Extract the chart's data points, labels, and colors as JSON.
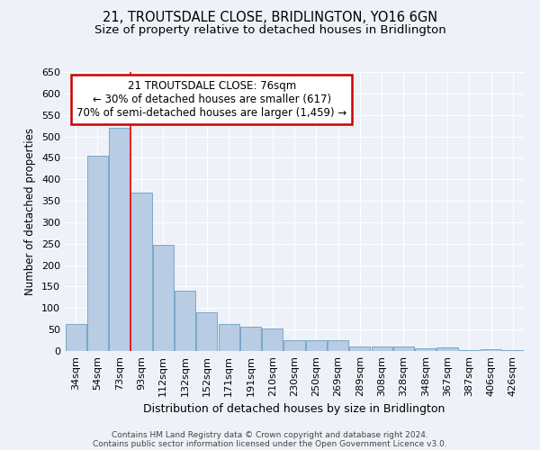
{
  "title1": "21, TROUTSDALE CLOSE, BRIDLINGTON, YO16 6GN",
  "title2": "Size of property relative to detached houses in Bridlington",
  "xlabel": "Distribution of detached houses by size in Bridlington",
  "ylabel": "Number of detached properties",
  "categories": [
    "34sqm",
    "54sqm",
    "73sqm",
    "93sqm",
    "112sqm",
    "132sqm",
    "152sqm",
    "171sqm",
    "191sqm",
    "210sqm",
    "230sqm",
    "250sqm",
    "269sqm",
    "289sqm",
    "308sqm",
    "328sqm",
    "348sqm",
    "367sqm",
    "387sqm",
    "406sqm",
    "426sqm"
  ],
  "values": [
    62,
    455,
    521,
    368,
    248,
    140,
    91,
    62,
    56,
    53,
    26,
    26,
    26,
    11,
    11,
    11,
    6,
    8,
    3,
    4,
    3
  ],
  "bar_color": "#b8cce4",
  "bar_edge_color": "#7ba7c7",
  "red_line_index": 2,
  "annotation_title": "21 TROUTSDALE CLOSE: 76sqm",
  "annotation_line1": "← 30% of detached houses are smaller (617)",
  "annotation_line2": "70% of semi-detached houses are larger (1,459) →",
  "annotation_box_color": "#ffffff",
  "annotation_box_edge": "#cc0000",
  "ylim": [
    0,
    650
  ],
  "yticks": [
    0,
    50,
    100,
    150,
    200,
    250,
    300,
    350,
    400,
    450,
    500,
    550,
    600,
    650
  ],
  "footnote1": "Contains HM Land Registry data © Crown copyright and database right 2024.",
  "footnote2": "Contains public sector information licensed under the Open Government Licence v3.0.",
  "background_color": "#eef2f8",
  "grid_color": "#ffffff",
  "title_fontsize": 10.5,
  "subtitle_fontsize": 9.5,
  "tick_fontsize": 8,
  "xlabel_fontsize": 9,
  "ylabel_fontsize": 8.5,
  "footnote_fontsize": 6.5,
  "ann_fontsize": 8.5
}
